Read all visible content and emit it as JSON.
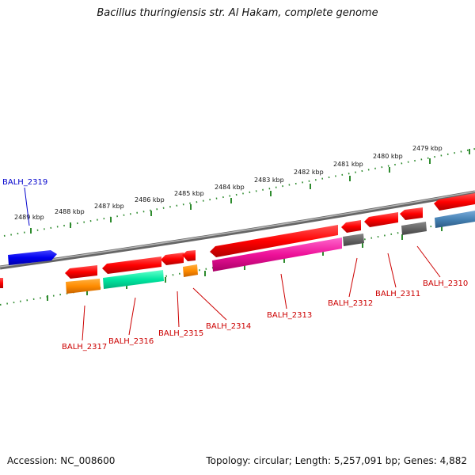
{
  "title": "Bacillus thuringiensis str. Al Hakam, complete genome",
  "footer": {
    "accession": "Accession: NC_008600",
    "topology": "Topology: circular; Length: 5,257,091 bp; Genes: 4,882"
  },
  "colors": {
    "backbone": "#808080",
    "tick_marks": "#2e8b2e",
    "label_red": "#cc0000",
    "label_blue": "#0000cc"
  },
  "kbp_labels": [
    "2479 kbp",
    "2480 kbp",
    "2481 kbp",
    "2482 kbp",
    "2483 kbp",
    "2484 kbp",
    "2485 kbp",
    "2486 kbp",
    "2487 kbp",
    "2488 kbp",
    "2489 kbp"
  ],
  "genes": [
    {
      "label": "BALH_2310",
      "color": "#cc0000"
    },
    {
      "label": "BALH_2311",
      "color": "#cc0000"
    },
    {
      "label": "BALH_2312",
      "color": "#cc0000"
    },
    {
      "label": "BALH_2313",
      "color": "#cc0000"
    },
    {
      "label": "BALH_2314",
      "color": "#cc0000"
    },
    {
      "label": "BALH_2315",
      "color": "#cc0000"
    },
    {
      "label": "BALH_2316",
      "color": "#cc0000"
    },
    {
      "label": "BALH_2317",
      "color": "#cc0000"
    },
    {
      "label": "BALH_2319",
      "color": "#0000cc"
    }
  ]
}
